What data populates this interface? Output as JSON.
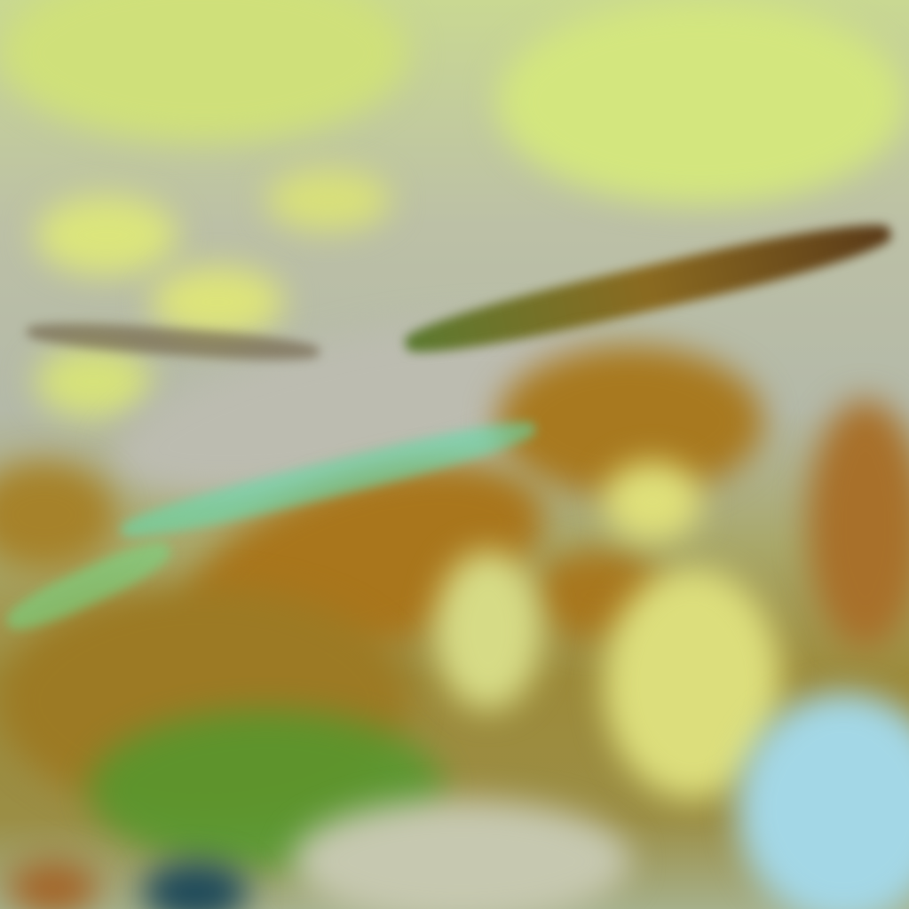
{
  "image": {
    "kind": "false-color satellite imagery",
    "palette": {
      "cloud_gray": "#b9bfa8",
      "cloud_yellow": "#d8e47a",
      "cloud_green": "#7fe05a",
      "terrain_brown": "#a97a22",
      "terrain_olive": "#8c8a2a",
      "edge_cyan": "#5fe3c0",
      "water_blue": "#9fd6e6",
      "shadow_dark": "#3a2a18"
    }
  }
}
